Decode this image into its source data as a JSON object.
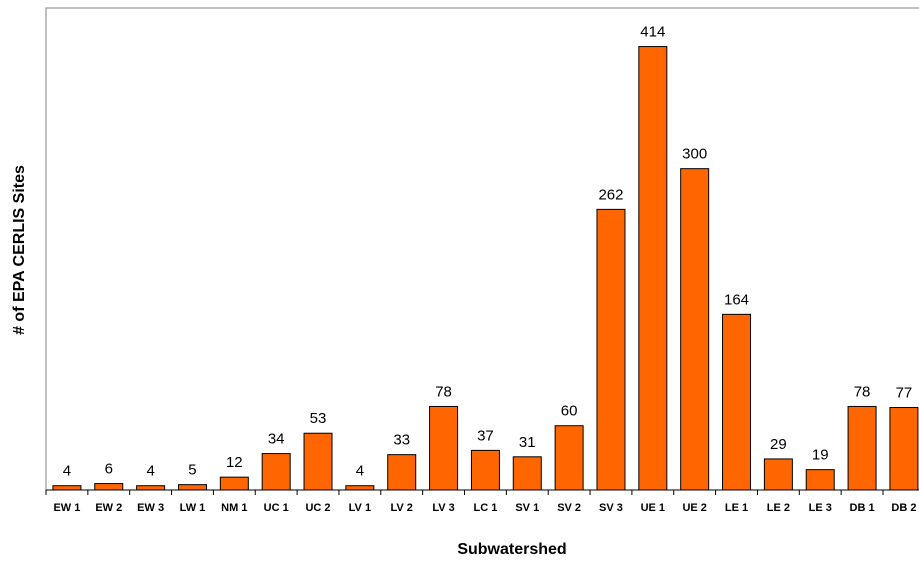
{
  "chart_data": {
    "type": "bar",
    "x_label": "Subwatershed",
    "y_label": "# of EPA CERLIS Sites",
    "categories": [
      "EW 1",
      "EW 2",
      "EW 3",
      "LW 1",
      "NM 1",
      "UC 1",
      "UC 2",
      "LV 1",
      "LV 2",
      "LV 3",
      "LC 1",
      "SV 1",
      "SV 2",
      "SV 3",
      "UE 1",
      "UE 2",
      "LE 1",
      "LE 2",
      "LE 3",
      "DB 1",
      "DB 2"
    ],
    "values": [
      4,
      6,
      4,
      5,
      12,
      34,
      53,
      4,
      33,
      78,
      37,
      31,
      60,
      262,
      414,
      300,
      164,
      29,
      19,
      78,
      77
    ],
    "color": "#ff6600",
    "ylim": [
      0,
      450
    ],
    "yticks": [],
    "grid": false
  }
}
